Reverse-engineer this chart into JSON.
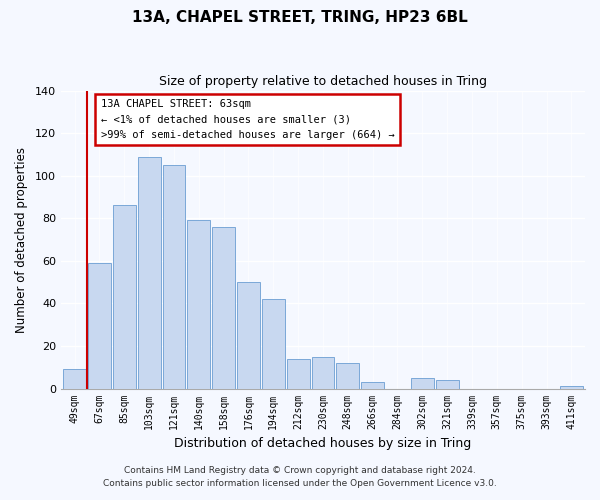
{
  "title": "13A, CHAPEL STREET, TRING, HP23 6BL",
  "subtitle": "Size of property relative to detached houses in Tring",
  "xlabel": "Distribution of detached houses by size in Tring",
  "ylabel": "Number of detached properties",
  "bar_labels": [
    "49sqm",
    "67sqm",
    "85sqm",
    "103sqm",
    "121sqm",
    "140sqm",
    "158sqm",
    "176sqm",
    "194sqm",
    "212sqm",
    "230sqm",
    "248sqm",
    "266sqm",
    "284sqm",
    "302sqm",
    "321sqm",
    "339sqm",
    "357sqm",
    "375sqm",
    "393sqm",
    "411sqm"
  ],
  "bar_values": [
    9,
    59,
    86,
    109,
    105,
    79,
    76,
    50,
    42,
    14,
    15,
    12,
    3,
    0,
    5,
    4,
    0,
    0,
    0,
    0,
    1
  ],
  "bar_color": "#c8d8f0",
  "bar_edge_color": "#7aa8d8",
  "annotation_text_line1": "13A CHAPEL STREET: 63sqm",
  "annotation_text_line2": "← <1% of detached houses are smaller (3)",
  "annotation_text_line3": ">99% of semi-detached houses are larger (664) →",
  "annotation_box_color": "#ffffff",
  "annotation_box_edge_color": "#cc0000",
  "property_line_color": "#cc0000",
  "ylim": [
    0,
    140
  ],
  "bg_color": "#f5f8ff",
  "footer_line1": "Contains HM Land Registry data © Crown copyright and database right 2024.",
  "footer_line2": "Contains public sector information licensed under the Open Government Licence v3.0."
}
